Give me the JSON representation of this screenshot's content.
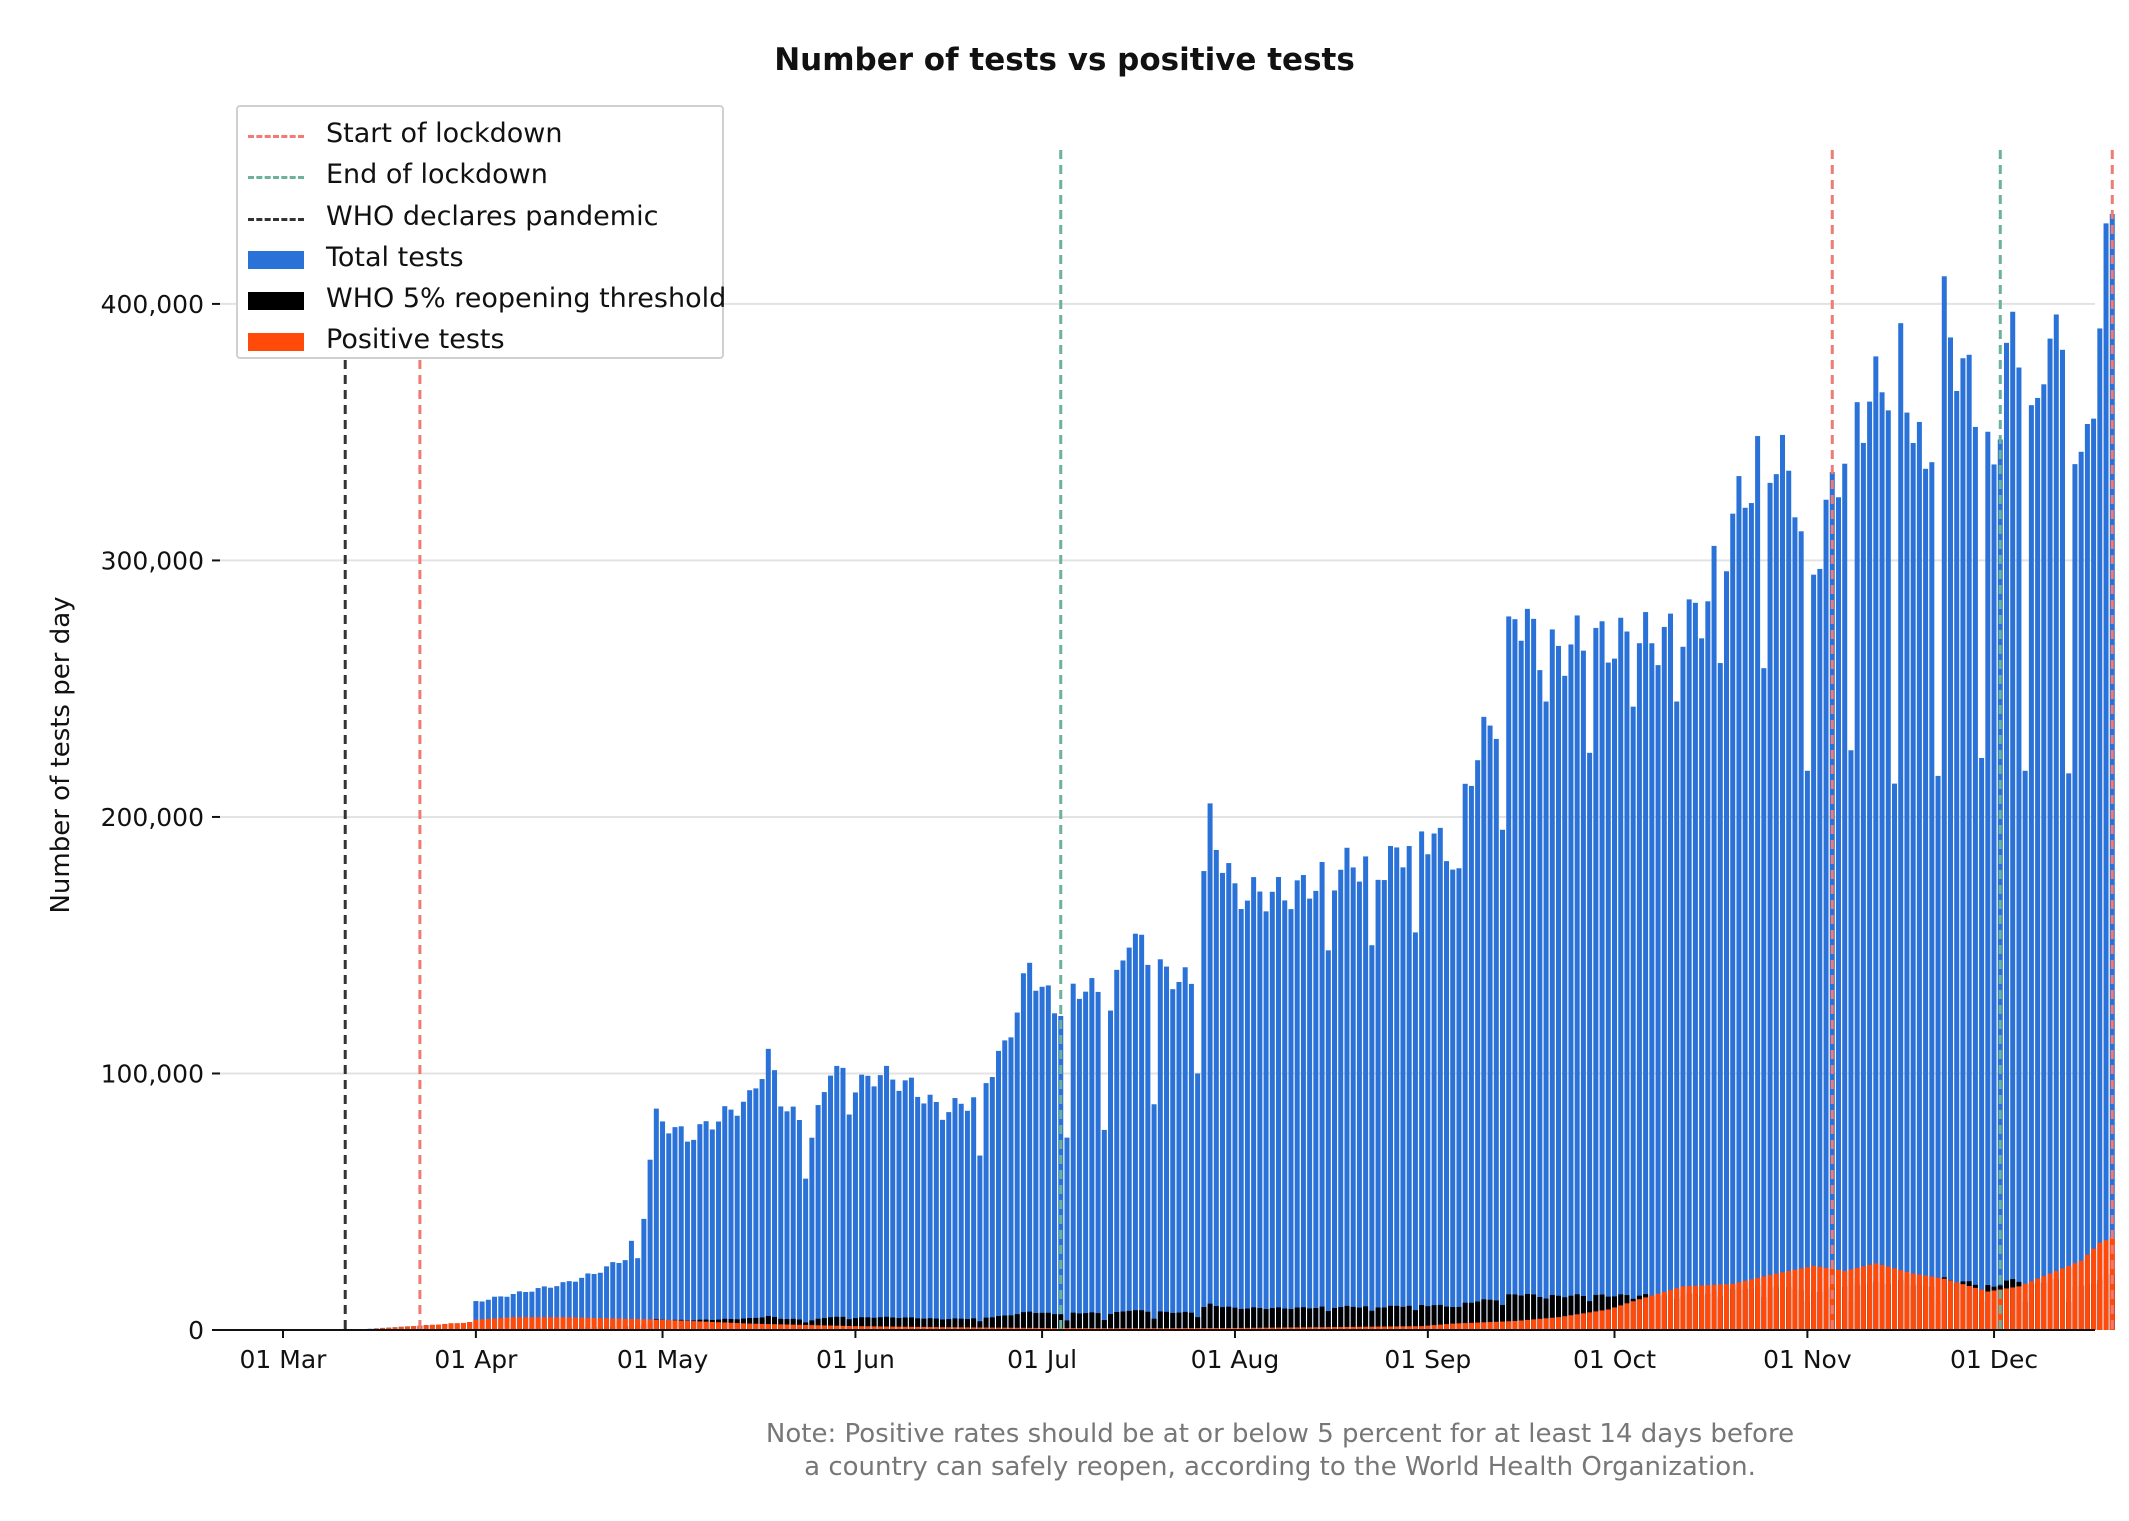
{
  "chart_data": {
    "type": "bar",
    "title": "Number of tests vs positive tests",
    "ylabel": "Number of tests per day",
    "xlabel": "",
    "ylim": [
      0,
      460000
    ],
    "yticks": [
      0,
      100000,
      200000,
      300000,
      400000
    ],
    "ytick_labels": [
      "0",
      "100,000",
      "200,000",
      "300,000",
      "400,000"
    ],
    "x_start_date": "2020-03-01",
    "xtick_labels": [
      "01 Mar",
      "01 Apr",
      "01 May",
      "01 Jun",
      "01 Jul",
      "01 Aug",
      "01 Sep",
      "01 Oct",
      "01 Nov",
      "01 Dec"
    ],
    "xtick_dates": [
      "2020-03-01",
      "2020-04-01",
      "2020-05-01",
      "2020-06-01",
      "2020-07-01",
      "2020-08-01",
      "2020-09-01",
      "2020-10-01",
      "2020-11-01",
      "2020-12-01"
    ],
    "grid": "horizontal",
    "legend_position": "top-left",
    "note": [
      "Note: Positive rates should be at or below 5 percent for at least 14 days before",
      "a country can safely reopen, according to the World Health Organization."
    ],
    "legend": [
      {
        "label": "Start of lockdown",
        "kind": "dashed-line",
        "color": "#f07a74"
      },
      {
        "label": "End of lockdown",
        "kind": "dashed-line",
        "color": "#6ab39a"
      },
      {
        "label": "WHO declares pandemic",
        "kind": "dashed-line",
        "color": "#333333"
      },
      {
        "label": "Total tests",
        "kind": "bar",
        "color": "#2a72d8"
      },
      {
        "label": "WHO 5% reopening threshold",
        "kind": "bar",
        "color": "#000000"
      },
      {
        "label": "Positive tests",
        "kind": "bar",
        "color": "#ff4a0a"
      }
    ],
    "vlines": [
      {
        "date": "2020-03-11",
        "series": "WHO declares pandemic",
        "color": "#333333"
      },
      {
        "date": "2020-03-23",
        "series": "Start of lockdown",
        "color": "#f07a74"
      },
      {
        "date": "2020-07-04",
        "series": "End of lockdown",
        "color": "#6ab39a"
      },
      {
        "date": "2020-11-05",
        "series": "Start of lockdown",
        "color": "#f07a74"
      },
      {
        "date": "2020-12-02",
        "series": "End of lockdown",
        "color": "#6ab39a"
      },
      {
        "date": "2020-12-20",
        "series": "Start of lockdown",
        "color": "#f07a74"
      }
    ],
    "series": [
      {
        "name": "Total tests",
        "color": "#2a72d8",
        "keypoints": [
          [
            "2020-03-15",
            500
          ],
          [
            "2020-03-25",
            2000
          ],
          [
            "2020-03-31",
            3000
          ],
          [
            "2020-04-01",
            11000
          ],
          [
            "2020-04-07",
            14000
          ],
          [
            "2020-04-15",
            18000
          ],
          [
            "2020-04-20",
            22000
          ],
          [
            "2020-04-25",
            28000
          ],
          [
            "2020-04-28",
            45000
          ],
          [
            "2020-04-29",
            67000
          ],
          [
            "2020-04-30",
            83000
          ],
          [
            "2020-05-05",
            75000
          ],
          [
            "2020-05-15",
            90000
          ],
          [
            "2020-05-18",
            107000
          ],
          [
            "2020-05-20",
            90000
          ],
          [
            "2020-05-25",
            75000
          ],
          [
            "2020-05-28",
            103000
          ],
          [
            "2020-06-01",
            95000
          ],
          [
            "2020-06-05",
            100000
          ],
          [
            "2020-06-10",
            95000
          ],
          [
            "2020-06-15",
            85000
          ],
          [
            "2020-06-20",
            90000
          ],
          [
            "2020-06-25",
            110000
          ],
          [
            "2020-06-29",
            142000
          ],
          [
            "2020-07-03",
            125000
          ],
          [
            "2020-07-08",
            135000
          ],
          [
            "2020-07-12",
            125000
          ],
          [
            "2020-07-15",
            155000
          ],
          [
            "2020-07-20",
            140000
          ],
          [
            "2020-07-25",
            135000
          ],
          [
            "2020-07-28",
            198000
          ],
          [
            "2020-08-01",
            170000
          ],
          [
            "2020-08-10",
            170000
          ],
          [
            "2020-08-20",
            182000
          ],
          [
            "2020-08-25",
            180000
          ],
          [
            "2020-08-31",
            195000
          ],
          [
            "2020-09-05",
            185000
          ],
          [
            "2020-09-08",
            220000
          ],
          [
            "2020-09-12",
            240000
          ],
          [
            "2020-09-15",
            282000
          ],
          [
            "2020-09-20",
            262000
          ],
          [
            "2020-09-25",
            268000
          ],
          [
            "2020-10-01",
            268000
          ],
          [
            "2020-10-10",
            270000
          ],
          [
            "2020-10-15",
            280000
          ],
          [
            "2020-10-20",
            315000
          ],
          [
            "2020-10-25",
            345000
          ],
          [
            "2020-10-30",
            330000
          ],
          [
            "2020-11-01",
            290000
          ],
          [
            "2020-11-05",
            325000
          ],
          [
            "2020-11-08",
            355000
          ],
          [
            "2020-11-12",
            365000
          ],
          [
            "2020-11-16",
            380000
          ],
          [
            "2020-11-20",
            330000
          ],
          [
            "2020-11-23",
            395000
          ],
          [
            "2020-11-28",
            360000
          ],
          [
            "2020-12-01",
            330000
          ],
          [
            "2020-12-03",
            390000
          ],
          [
            "2020-12-08",
            350000
          ],
          [
            "2020-12-10",
            400000
          ],
          [
            "2020-12-15",
            330000
          ],
          [
            "2020-12-18",
            390000
          ],
          [
            "2020-12-20",
            440000
          ]
        ],
        "dips": [
          [
            "2020-04-27",
            28000
          ],
          [
            "2020-05-24",
            59000
          ],
          [
            "2020-05-31",
            84000
          ],
          [
            "2020-06-21",
            68000
          ],
          [
            "2020-07-05",
            75000
          ],
          [
            "2020-07-11",
            78000
          ],
          [
            "2020-07-19",
            88000
          ],
          [
            "2020-07-26",
            100000
          ],
          [
            "2020-08-16",
            148000
          ],
          [
            "2020-08-23",
            150000
          ],
          [
            "2020-08-30",
            155000
          ],
          [
            "2020-09-06",
            180000
          ],
          [
            "2020-09-13",
            195000
          ],
          [
            "2020-09-20",
            245000
          ],
          [
            "2020-09-27",
            225000
          ],
          [
            "2020-10-04",
            243000
          ],
          [
            "2020-10-11",
            245000
          ],
          [
            "2020-10-18",
            260000
          ],
          [
            "2020-10-25",
            258000
          ],
          [
            "2020-11-01",
            218000
          ],
          [
            "2020-11-08",
            226000
          ],
          [
            "2020-11-15",
            213000
          ],
          [
            "2020-11-22",
            216000
          ],
          [
            "2020-11-29",
            223000
          ],
          [
            "2020-12-06",
            218000
          ],
          [
            "2020-12-13",
            217000
          ]
        ]
      },
      {
        "name": "WHO 5% reopening threshold",
        "color": "#000000",
        "definition": "5% of total tests"
      },
      {
        "name": "Positive tests",
        "color": "#ff4a0a",
        "keypoints": [
          [
            "2020-03-15",
            400
          ],
          [
            "2020-03-25",
            2000
          ],
          [
            "2020-04-01",
            4000
          ],
          [
            "2020-04-07",
            5000
          ],
          [
            "2020-04-15",
            5000
          ],
          [
            "2020-05-01",
            4000
          ],
          [
            "2020-05-15",
            2500
          ],
          [
            "2020-06-01",
            1500
          ],
          [
            "2020-06-15",
            1100
          ],
          [
            "2020-07-01",
            800
          ],
          [
            "2020-07-15",
            700
          ],
          [
            "2020-08-01",
            800
          ],
          [
            "2020-08-15",
            1100
          ],
          [
            "2020-08-31",
            1500
          ],
          [
            "2020-09-05",
            2500
          ],
          [
            "2020-09-15",
            3500
          ],
          [
            "2020-09-22",
            5000
          ],
          [
            "2020-09-30",
            8000
          ],
          [
            "2020-10-05",
            12000
          ],
          [
            "2020-10-12",
            17000
          ],
          [
            "2020-10-20",
            18000
          ],
          [
            "2020-10-27",
            22000
          ],
          [
            "2020-11-02",
            25000
          ],
          [
            "2020-11-07",
            23000
          ],
          [
            "2020-11-12",
            26000
          ],
          [
            "2020-11-18",
            22000
          ],
          [
            "2020-11-23",
            20000
          ],
          [
            "2020-11-30",
            15000
          ],
          [
            "2020-12-05",
            17000
          ],
          [
            "2020-12-10",
            22000
          ],
          [
            "2020-12-15",
            27000
          ],
          [
            "2020-12-18",
            34000
          ],
          [
            "2020-12-20",
            36000
          ]
        ]
      }
    ]
  }
}
